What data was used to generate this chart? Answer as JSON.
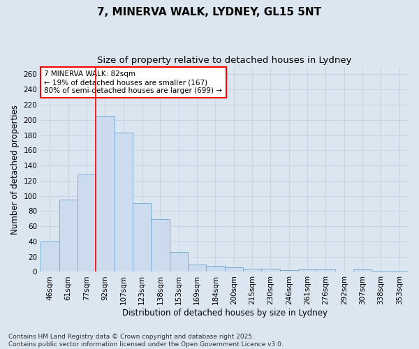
{
  "title_line1": "7, MINERVA WALK, LYDNEY, GL15 5NT",
  "title_line2": "Size of property relative to detached houses in Lydney",
  "xlabel": "Distribution of detached houses by size in Lydney",
  "ylabel": "Number of detached properties",
  "categories": [
    "46sqm",
    "61sqm",
    "77sqm",
    "92sqm",
    "107sqm",
    "123sqm",
    "138sqm",
    "153sqm",
    "169sqm",
    "184sqm",
    "200sqm",
    "215sqm",
    "230sqm",
    "246sqm",
    "261sqm",
    "276sqm",
    "292sqm",
    "307sqm",
    "338sqm",
    "353sqm"
  ],
  "values": [
    40,
    95,
    128,
    205,
    183,
    90,
    69,
    26,
    10,
    8,
    6,
    4,
    4,
    2,
    3,
    3,
    0,
    3,
    1,
    1
  ],
  "bar_color": "#ccdcee",
  "bar_edge_color": "#7badd4",
  "grid_color": "#c8d4e3",
  "background_color": "#dce6f0",
  "vline_x_index": 2.5,
  "vline_color": "red",
  "annotation_text": "7 MINERVA WALK: 82sqm\n← 19% of detached houses are smaller (167)\n80% of semi-detached houses are larger (699) →",
  "annotation_box_facecolor": "white",
  "annotation_box_edgecolor": "red",
  "ylim": [
    0,
    270
  ],
  "yticks": [
    0,
    20,
    40,
    60,
    80,
    100,
    120,
    140,
    160,
    180,
    200,
    220,
    240,
    260
  ],
  "footer": "Contains HM Land Registry data © Crown copyright and database right 2025.\nContains public sector information licensed under the Open Government Licence v3.0.",
  "title_fontsize": 11,
  "subtitle_fontsize": 9.5,
  "axis_label_fontsize": 8.5,
  "tick_fontsize": 7.5,
  "annotation_fontsize": 7.5,
  "footer_fontsize": 6.5
}
